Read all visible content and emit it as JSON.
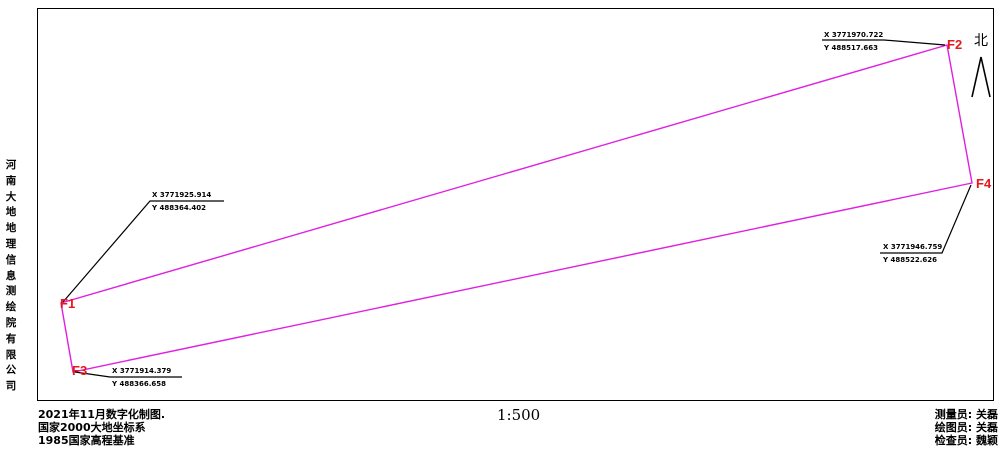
{
  "organization": "河南大地地理信息测绘院有限公司",
  "scale": "1:500",
  "notes": [
    "2021年11月数字化制图.",
    "国家2000大地坐标系",
    "1985国家高程基准"
  ],
  "staff": [
    "测量员: 关磊",
    "绘图员: 关磊",
    "检查员: 魏颖"
  ],
  "north_label": "北",
  "boundary_color": "#e020e0",
  "point_label_color": "#e31a1c",
  "points": [
    {
      "label": "F1",
      "x": "X 3771925.914",
      "y": "Y 488364.402"
    },
    {
      "label": "F2",
      "x": "X 3771970.722",
      "y": "Y 488517.663"
    },
    {
      "label": "F3",
      "x": "X 3771914.379",
      "y": "Y 488366.658"
    },
    {
      "label": "F4",
      "x": "X 3771946.759",
      "y": "Y 488522.626"
    }
  ]
}
